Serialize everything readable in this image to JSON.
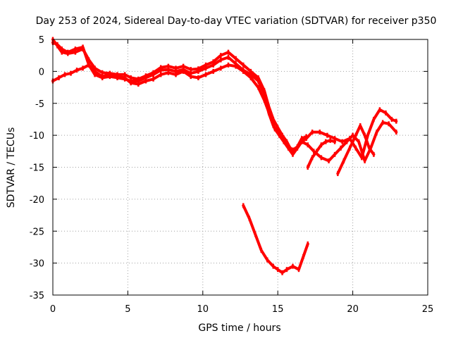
{
  "chart_data": {
    "type": "line",
    "title": "Day 253 of 2024, Sidereal Day-to-day VTEC variation (SDTVAR) for receiver p350",
    "xlabel": "GPS time / hours",
    "ylabel": "SDTVAR / TECUs",
    "xlim": [
      0,
      25
    ],
    "ylim": [
      -35,
      5
    ],
    "xticks": [
      0,
      5,
      10,
      15,
      20,
      25
    ],
    "yticks": [
      5,
      0,
      -5,
      -10,
      -15,
      -20,
      -25,
      -30,
      -35
    ],
    "grid": true,
    "color": "#ff0000",
    "series": [
      {
        "x": [
          0.0,
          0.3,
          0.6,
          1.0,
          1.5,
          2.0,
          2.4,
          2.8,
          3.3,
          3.8,
          4.3,
          4.8,
          5.2,
          5.7,
          6.2,
          6.7,
          7.2,
          7.7,
          8.2,
          8.7,
          9.2,
          9.7,
          10.2,
          10.7,
          11.2,
          11.7,
          12.2,
          12.7,
          13.2,
          13.7,
          14.1,
          14.4,
          14.7,
          15.0,
          15.3,
          15.6,
          16.0,
          16.3,
          16.6,
          16.9
        ],
        "y": [
          4.5,
          4.2,
          3.5,
          3.0,
          3.5,
          3.8,
          1.0,
          -0.5,
          -1.0,
          -0.8,
          -1.0,
          -1.2,
          -1.5,
          -1.5,
          -1.0,
          -0.5,
          0.2,
          0.3,
          0.0,
          0.3,
          -0.3,
          0.0,
          0.5,
          1.0,
          1.8,
          2.2,
          1.2,
          0.2,
          -0.5,
          -1.5,
          -3.5,
          -6.5,
          -8.5,
          -9.5,
          -10.5,
          -11.5,
          -12.3,
          -11.8,
          -10.5,
          -10.2
        ]
      },
      {
        "x": [
          0.0,
          0.3,
          0.6,
          1.0,
          1.5,
          2.0,
          2.4,
          2.8,
          3.3,
          3.8,
          4.3,
          4.8,
          5.2,
          5.7,
          6.2,
          6.7,
          7.2,
          7.7,
          8.2,
          8.7,
          9.2,
          9.7,
          10.2,
          10.7,
          11.2,
          11.7,
          12.2,
          12.7,
          13.2,
          13.7,
          14.1,
          14.4,
          14.7,
          15.0,
          15.3,
          15.6,
          16.0,
          16.3,
          16.6,
          16.9,
          17.3,
          17.8,
          18.3,
          18.8,
          19.3,
          19.8,
          20.2,
          20.6,
          21.0,
          21.4,
          21.8,
          22.2,
          22.6,
          22.9
        ],
        "y": [
          5.0,
          4.0,
          3.0,
          2.8,
          3.0,
          3.5,
          1.8,
          0.5,
          -0.2,
          -0.3,
          -0.5,
          -0.5,
          -1.0,
          -1.2,
          -0.7,
          -0.2,
          0.6,
          0.8,
          0.5,
          0.8,
          0.3,
          0.4,
          1.0,
          1.5,
          2.5,
          3.0,
          2.0,
          1.0,
          0.0,
          -1.0,
          -3.0,
          -5.5,
          -7.5,
          -8.8,
          -10.0,
          -11.0,
          -12.8,
          -12.0,
          -11.0,
          -10.5,
          -9.5,
          -9.5,
          -10.0,
          -10.5,
          -11.0,
          -10.5,
          -12.0,
          -13.5,
          -10.0,
          -7.5,
          -6.0,
          -6.5,
          -7.5,
          -7.8
        ]
      },
      {
        "x": [
          0.0,
          0.4,
          0.8,
          1.2,
          1.6,
          2.0,
          2.4,
          2.8,
          3.3,
          3.8,
          4.3,
          4.8,
          5.2,
          5.7,
          6.2,
          6.7,
          7.2,
          7.7,
          8.2,
          8.7,
          9.2,
          9.7,
          10.2,
          10.7,
          11.2,
          11.7,
          12.2,
          12.7,
          13.2,
          13.7,
          14.1,
          14.5,
          14.8,
          15.1,
          15.4,
          15.7,
          16.0,
          16.3,
          16.6,
          17.0,
          17.4,
          17.9,
          18.4,
          18.8,
          19.2,
          19.6,
          20.0,
          20.4,
          20.8,
          21.2,
          21.6,
          22.0,
          22.4,
          22.9
        ],
        "y": [
          -1.5,
          -1.0,
          -0.5,
          -0.3,
          0.2,
          0.5,
          1.0,
          0.0,
          -0.8,
          -0.5,
          -0.8,
          -1.0,
          -1.8,
          -2.0,
          -1.5,
          -1.2,
          -0.5,
          -0.2,
          -0.5,
          0.0,
          -0.8,
          -1.0,
          -0.5,
          0.0,
          0.5,
          1.0,
          0.8,
          0.0,
          -1.0,
          -2.5,
          -4.5,
          -7.0,
          -9.0,
          -10.0,
          -11.0,
          -12.0,
          -13.0,
          -12.0,
          -11.0,
          -11.5,
          -12.5,
          -13.5,
          -14.0,
          -13.0,
          -12.0,
          -11.0,
          -10.0,
          -11.0,
          -14.0,
          -12.0,
          -9.5,
          -8.0,
          -8.2,
          -9.5
        ]
      },
      {
        "x": [
          12.7,
          13.1,
          13.5,
          13.9,
          14.3,
          14.7,
          15.0,
          15.3,
          15.6,
          16.0,
          16.4,
          16.7,
          17.0
        ],
        "y": [
          -21.0,
          -23.0,
          -25.5,
          -28.0,
          -29.5,
          -30.5,
          -31.0,
          -31.5,
          -31.0,
          -30.5,
          -31.0,
          -29.0,
          -27.0
        ]
      },
      {
        "x": [
          17.0,
          17.3,
          17.6,
          17.9,
          18.2,
          18.5,
          18.8
        ],
        "y": [
          -15.0,
          -13.5,
          -12.5,
          -11.5,
          -11.0,
          -10.8,
          -11.0
        ]
      },
      {
        "x": [
          19.0,
          19.4,
          19.8,
          20.2,
          20.5,
          20.8,
          21.1,
          21.4
        ],
        "y": [
          -16.0,
          -14.0,
          -12.0,
          -10.0,
          -8.5,
          -10.0,
          -12.0,
          -13.0
        ]
      }
    ]
  }
}
